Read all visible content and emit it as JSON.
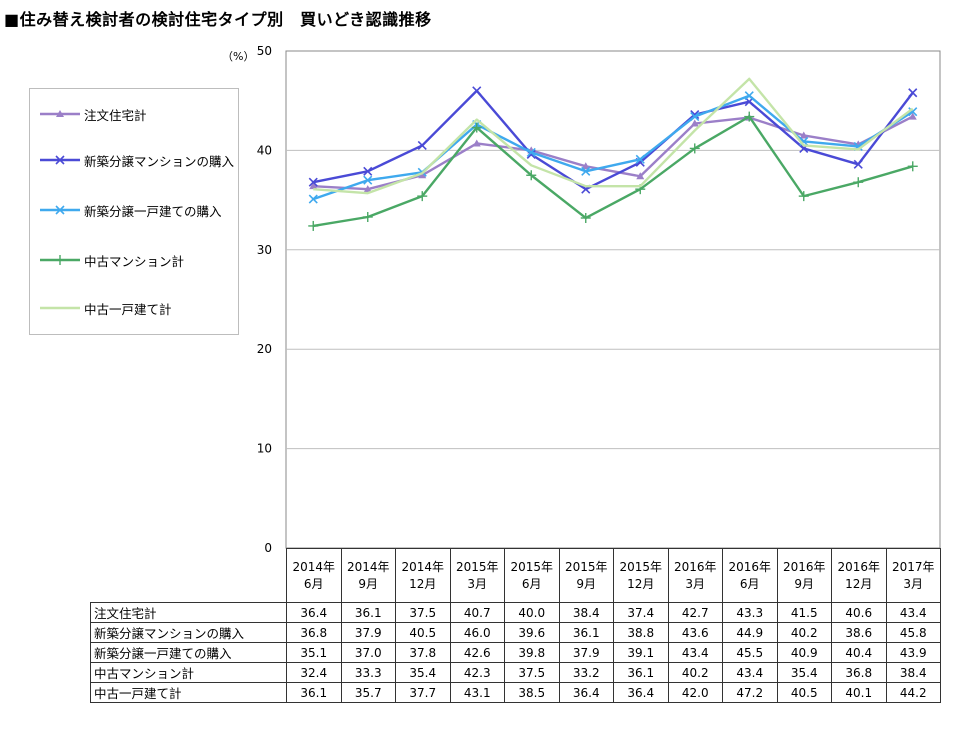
{
  "title": "■住み替え検討者の検討住宅タイプ別　買いどき認識推移",
  "chart_data": {
    "type": "line",
    "title": "■住み替え検討者の検討住宅タイプ別　買いどき認識推移",
    "ylabel": "（%）",
    "ylim": [
      0,
      50
    ],
    "yticks": [
      0,
      10,
      20,
      30,
      40,
      50
    ],
    "grid": true,
    "legend_position": "left",
    "categories": [
      [
        "2014年",
        "6月"
      ],
      [
        "2014年",
        "9月"
      ],
      [
        "2014年",
        "12月"
      ],
      [
        "2015年",
        "3月"
      ],
      [
        "2015年",
        "6月"
      ],
      [
        "2015年",
        "9月"
      ],
      [
        "2015年",
        "12月"
      ],
      [
        "2016年",
        "3月"
      ],
      [
        "2016年",
        "6月"
      ],
      [
        "2016年",
        "9月"
      ],
      [
        "2016年",
        "12月"
      ],
      [
        "2017年",
        "3月"
      ]
    ],
    "series": [
      {
        "name": "注文住宅計",
        "color": "#9b7fc8",
        "marker": "triangle",
        "values": [
          36.4,
          36.1,
          37.5,
          40.7,
          40.0,
          38.4,
          37.4,
          42.7,
          43.3,
          41.5,
          40.6,
          43.4
        ],
        "labels": [
          "36.4",
          "36.1",
          "37.5",
          "40.7",
          "40.0",
          "38.4",
          "37.4",
          "42.7",
          "43.3",
          "41.5",
          "40.6",
          "43.4"
        ]
      },
      {
        "name": "新築分譲マンションの購入",
        "color": "#4a4ad6",
        "marker": "x",
        "values": [
          36.8,
          37.9,
          40.5,
          46.0,
          39.6,
          36.1,
          38.8,
          43.6,
          44.9,
          40.2,
          38.6,
          45.8
        ],
        "labels": [
          "36.8",
          "37.9",
          "40.5",
          "46.0",
          "39.6",
          "36.1",
          "38.8",
          "43.6",
          "44.9",
          "40.2",
          "38.6",
          "45.8"
        ]
      },
      {
        "name": "新築分譲一戸建ての購入",
        "color": "#3fa9ee",
        "marker": "x",
        "values": [
          35.1,
          37.0,
          37.8,
          42.6,
          39.8,
          37.9,
          39.1,
          43.4,
          45.5,
          40.9,
          40.4,
          43.9
        ],
        "labels": [
          "35.1",
          "37.0",
          "37.8",
          "42.6",
          "39.8",
          "37.9",
          "39.1",
          "43.4",
          "45.5",
          "40.9",
          "40.4",
          "43.9"
        ]
      },
      {
        "name": "中古マンション計",
        "color": "#4aa865",
        "marker": "plus",
        "values": [
          32.4,
          33.3,
          35.4,
          42.3,
          37.5,
          33.2,
          36.1,
          40.2,
          43.4,
          35.4,
          36.8,
          38.4
        ],
        "labels": [
          "32.4",
          "33.3",
          "35.4",
          "42.3",
          "37.5",
          "33.2",
          "36.1",
          "40.2",
          "43.4",
          "35.4",
          "36.8",
          "38.4"
        ]
      },
      {
        "name": "中古一戸建て計",
        "color": "#c4e4a8",
        "marker": "none",
        "values": [
          36.1,
          35.7,
          37.7,
          43.1,
          38.5,
          36.4,
          36.4,
          42.0,
          47.2,
          40.5,
          40.1,
          44.2
        ],
        "labels": [
          "36.1",
          "35.7",
          "37.7",
          "43.1",
          "38.5",
          "36.4",
          "36.4",
          "42.0",
          "47.2",
          "40.5",
          "40.1",
          "44.2"
        ]
      }
    ]
  }
}
